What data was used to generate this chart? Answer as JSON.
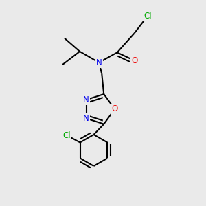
{
  "background_color": "#eaeaea",
  "atom_colors": {
    "C": "#000000",
    "N": "#0000ee",
    "O": "#ee0000",
    "Cl": "#00aa00"
  },
  "bond_color": "#000000",
  "bond_width": 1.5,
  "font_size_atom": 8.5
}
